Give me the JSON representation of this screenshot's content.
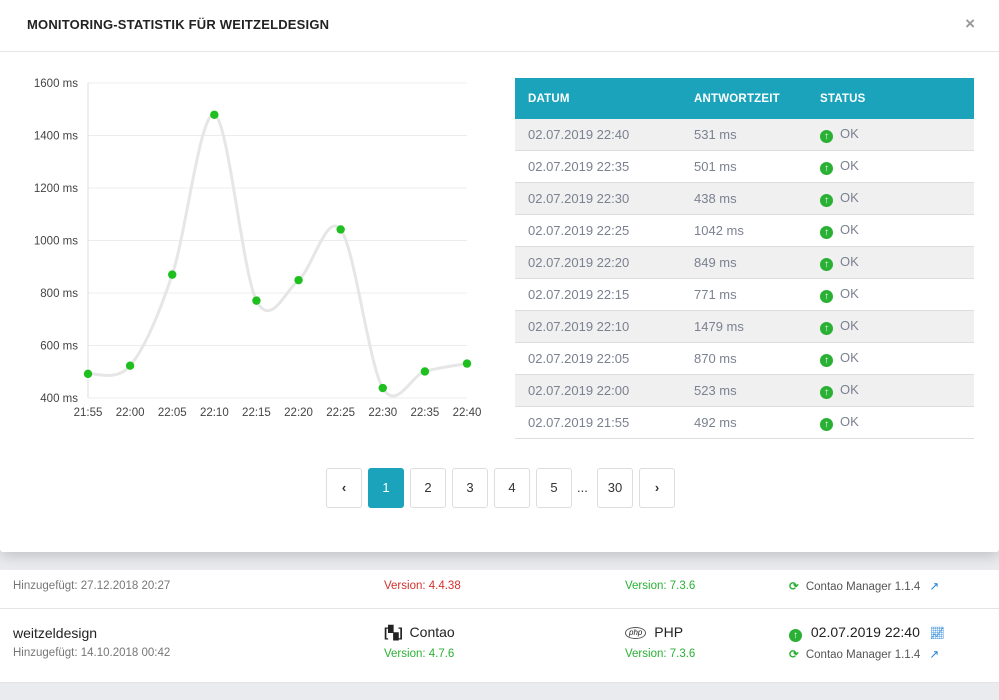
{
  "modal": {
    "title": "MONITORING-STATISTIK FÜR WEITZELDESIGN",
    "close_icon": "×"
  },
  "chart_data": {
    "type": "line",
    "x": [
      "21:55",
      "22:00",
      "22:05",
      "22:10",
      "22:15",
      "22:20",
      "22:25",
      "22:30",
      "22:35",
      "22:40"
    ],
    "values": [
      492,
      523,
      870,
      1479,
      771,
      849,
      1042,
      438,
      501,
      531
    ],
    "y_ticks": [
      "400 ms",
      "600 ms",
      "800 ms",
      "1000 ms",
      "1200 ms",
      "1400 ms",
      "1600 ms"
    ],
    "ylim": [
      400,
      1600
    ],
    "grid": true,
    "line_color": "#e6e6e6",
    "point_color": "#1fbf1f"
  },
  "table": {
    "headers": [
      "DATUM",
      "ANTWORTZEIT",
      "STATUS"
    ],
    "rows": [
      {
        "date": "02.07.2019 22:40",
        "time": "531 ms",
        "status": "OK"
      },
      {
        "date": "02.07.2019 22:35",
        "time": "501 ms",
        "status": "OK"
      },
      {
        "date": "02.07.2019 22:30",
        "time": "438 ms",
        "status": "OK"
      },
      {
        "date": "02.07.2019 22:25",
        "time": "1042 ms",
        "status": "OK"
      },
      {
        "date": "02.07.2019 22:20",
        "time": "849 ms",
        "status": "OK"
      },
      {
        "date": "02.07.2019 22:15",
        "time": "771 ms",
        "status": "OK"
      },
      {
        "date": "02.07.2019 22:10",
        "time": "1479 ms",
        "status": "OK"
      },
      {
        "date": "02.07.2019 22:05",
        "time": "870 ms",
        "status": "OK"
      },
      {
        "date": "02.07.2019 22:00",
        "time": "523 ms",
        "status": "OK"
      },
      {
        "date": "02.07.2019 21:55",
        "time": "492 ms",
        "status": "OK"
      }
    ]
  },
  "pagination": {
    "prev": "‹",
    "pages": [
      "1",
      "2",
      "3",
      "4",
      "5"
    ],
    "ellipsis": "...",
    "last": "30",
    "next": "›",
    "active": "1"
  },
  "list": {
    "row1": {
      "added": "Hinzugefügt: 27.12.2018 20:27",
      "cms_version": "Version: 4.4.38",
      "php_version": "Version: 7.3.6",
      "manager": "Contao Manager 1.1.4"
    },
    "row2": {
      "name": "weitzeldesign",
      "added": "Hinzugefügt: 14.10.2018 00:42",
      "cms": "Contao",
      "cms_version": "Version: 4.7.6",
      "php": "PHP",
      "php_version": "Version: 7.3.6",
      "last_check": "02.07.2019 22:40",
      "manager": "Contao Manager 1.1.4"
    }
  },
  "colors": {
    "accent": "#1aa3bb",
    "ok": "#2ab035",
    "error": "#d0312d",
    "link": "#1a7fd8"
  }
}
